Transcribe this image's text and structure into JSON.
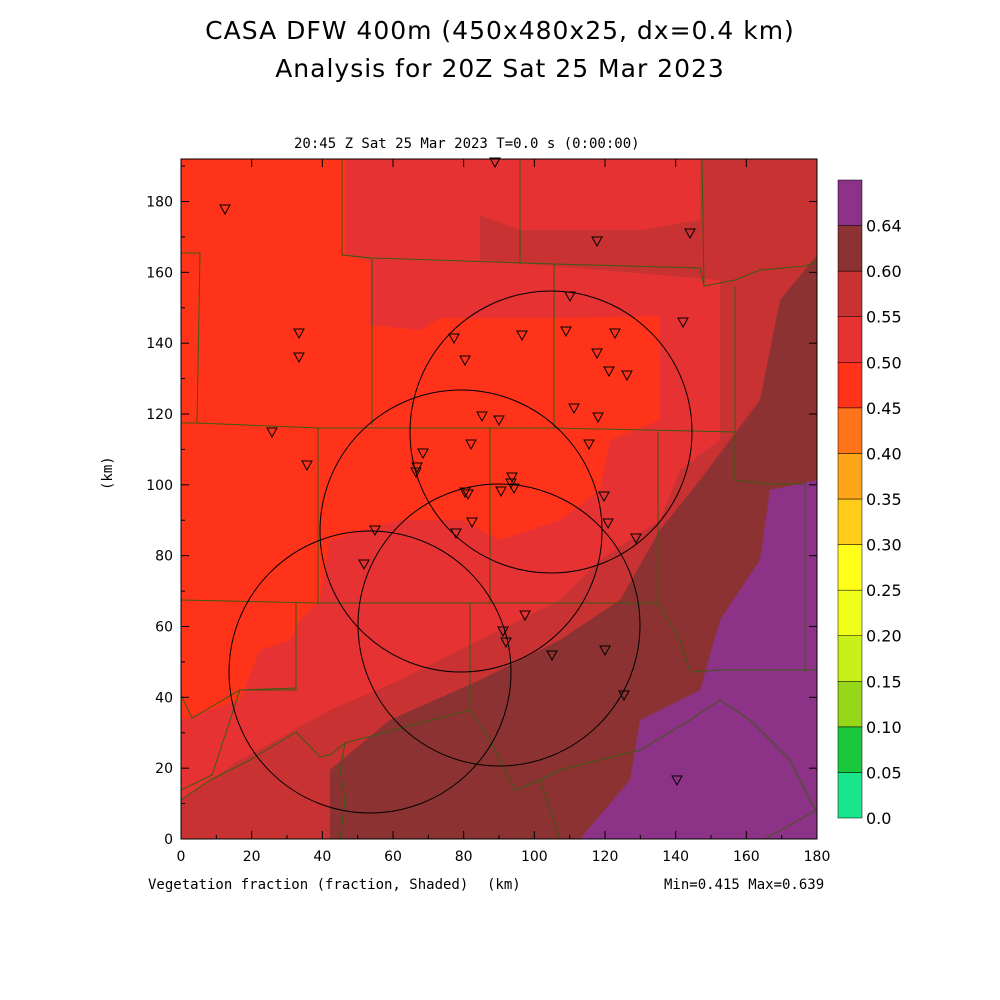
{
  "title_line1": "CASA DFW 400m (450x480x25, dx=0.4 km)",
  "title_line2": "Analysis for 20Z Sat 25 Mar 2023",
  "subtitle": "20:45 Z Sat 25 Mar 2023    T=0.0 s (0:00:00)",
  "field_label": "Vegetation fraction (fraction, Shaded)",
  "x_unit": "(km)",
  "y_unit": "(km)",
  "minmax": "Min=0.415 Max=0.639",
  "x_ticks": [
    "0",
    "20",
    "40",
    "60",
    "80",
    "100",
    "120",
    "140",
    "160",
    "180"
  ],
  "y_ticks": [
    "0",
    "20",
    "40",
    "60",
    "80",
    "100",
    "120",
    "140",
    "160",
    "180"
  ],
  "colorbar": {
    "labels": [
      "0.0",
      "0.05",
      "0.10",
      "0.15",
      "0.20",
      "0.25",
      "0.30",
      "0.35",
      "0.40",
      "0.45",
      "0.50",
      "0.55",
      "0.60",
      "0.64"
    ],
    "colors": [
      "#19e68c",
      "#19c83c",
      "#96d719",
      "#c8f019",
      "#f0ff19",
      "#ffff19",
      "#ffcd19",
      "#ffa519",
      "#ff7319",
      "#ff3319",
      "#e63232",
      "#c83232",
      "#8c3232",
      "#8c3287"
    ]
  },
  "map_colors": {
    "c045": "#ff3319",
    "c050": "#e63232",
    "c055": "#c83232",
    "c060": "#8c3232",
    "c064": "#8c3287",
    "county_line": "#3c5a14"
  }
}
